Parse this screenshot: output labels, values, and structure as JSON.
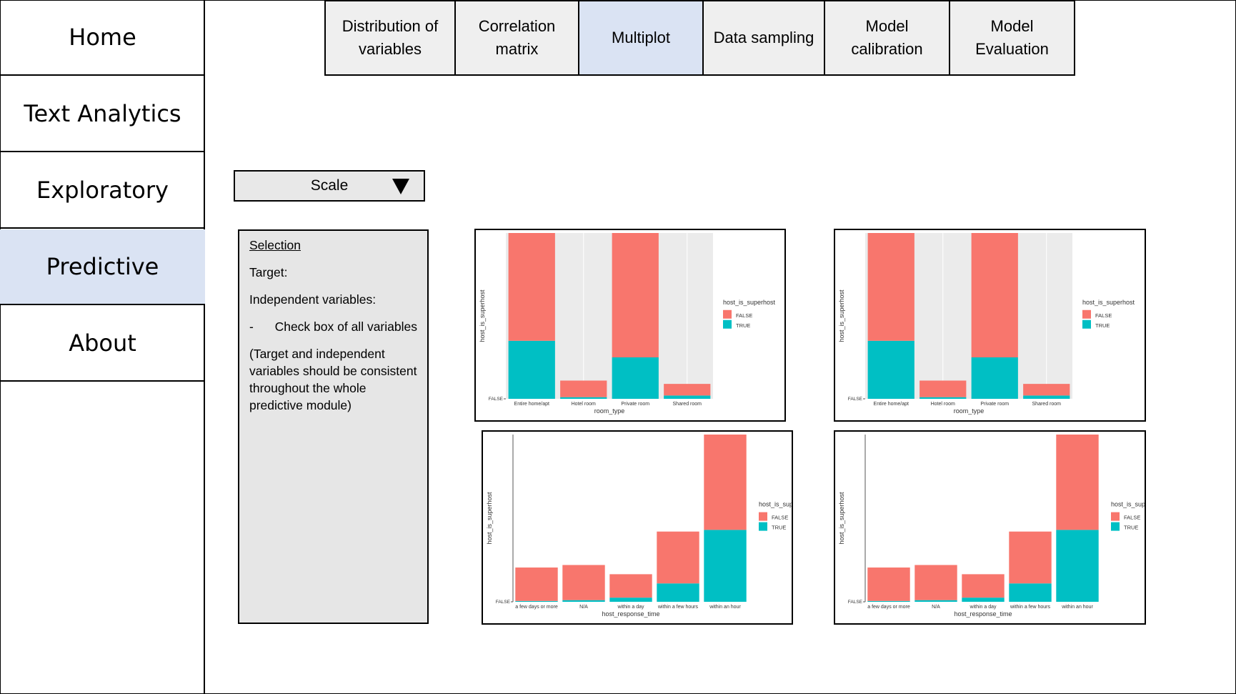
{
  "sidebar": {
    "items": [
      {
        "label": "Home"
      },
      {
        "label": "Text Analytics"
      },
      {
        "label": "Exploratory"
      },
      {
        "label": "Predictive"
      },
      {
        "label": "About"
      }
    ]
  },
  "tabs": [
    {
      "line1": "Distribution of",
      "line2": "variables"
    },
    {
      "line1": "Correlation",
      "line2": "matrix"
    },
    {
      "line1": "Multiplot",
      "line2": ""
    },
    {
      "line1": "Data sampling",
      "line2": ""
    },
    {
      "line1": "Model",
      "line2": "calibration"
    },
    {
      "line1": "Model",
      "line2": "Evaluation"
    }
  ],
  "dropdown": {
    "selected": "Scale"
  },
  "selection_panel": {
    "title": "Selection",
    "target_label": "Target:",
    "independent_label": "Independent variables:",
    "bullet_dash": "-",
    "bullet_text": "Check box of all variables",
    "note": "(Target and independent variables should be consistent throughout the whole predictive module)"
  },
  "colors": {
    "false": "#f8766d",
    "true": "#00bfc4"
  },
  "chart_data": [
    {
      "type": "bar",
      "stacked": true,
      "categories": [
        "Entire home/apt",
        "Hotel room",
        "Private room",
        "Shared room"
      ],
      "series": [
        {
          "name": "FALSE",
          "values": [
            0.65,
            0.1,
            0.75,
            0.07
          ]
        },
        {
          "name": "TRUE",
          "values": [
            0.35,
            0.01,
            0.25,
            0.02
          ]
        }
      ],
      "xlabel": "room_type",
      "ylabel": "host_is_superhost",
      "ytick": "FALSE",
      "legend_title": "host_is_superhost",
      "legend": "right",
      "background": "grey"
    },
    {
      "type": "bar",
      "stacked": true,
      "categories": [
        "Entire home/apt",
        "Hotel room",
        "Private room",
        "Shared room"
      ],
      "series": [
        {
          "name": "FALSE",
          "values": [
            0.65,
            0.1,
            0.75,
            0.07
          ]
        },
        {
          "name": "TRUE",
          "values": [
            0.35,
            0.01,
            0.25,
            0.02
          ]
        }
      ],
      "xlabel": "room_type",
      "ylabel": "host_is_superhost",
      "ytick": "FALSE",
      "legend_title": "host_is_superhost",
      "legend": "right",
      "background": "grey"
    },
    {
      "type": "bar",
      "stacked": true,
      "categories": [
        "a few days or more",
        "N/A",
        "within a day",
        "within a few hours",
        "within an hour"
      ],
      "series": [
        {
          "name": "FALSE",
          "values": [
            0.2,
            0.21,
            0.14,
            0.31,
            0.57
          ]
        },
        {
          "name": "TRUE",
          "values": [
            0.005,
            0.01,
            0.025,
            0.11,
            0.43
          ]
        }
      ],
      "xlabel": "host_response_time",
      "ylabel": "host_is_superhost",
      "ytick": "FALSE",
      "legend_title": "host_is_superhost",
      "legend": "right",
      "background": "white"
    },
    {
      "type": "bar",
      "stacked": true,
      "categories": [
        "a few days or more",
        "N/A",
        "within a day",
        "within a few hours",
        "within an hour"
      ],
      "series": [
        {
          "name": "FALSE",
          "values": [
            0.2,
            0.21,
            0.14,
            0.31,
            0.57
          ]
        },
        {
          "name": "TRUE",
          "values": [
            0.005,
            0.01,
            0.025,
            0.11,
            0.43
          ]
        }
      ],
      "xlabel": "host_response_time",
      "ylabel": "host_is_superhost",
      "ytick": "FALSE",
      "legend_title": "host_is_superhost",
      "legend": "right",
      "background": "white"
    }
  ]
}
